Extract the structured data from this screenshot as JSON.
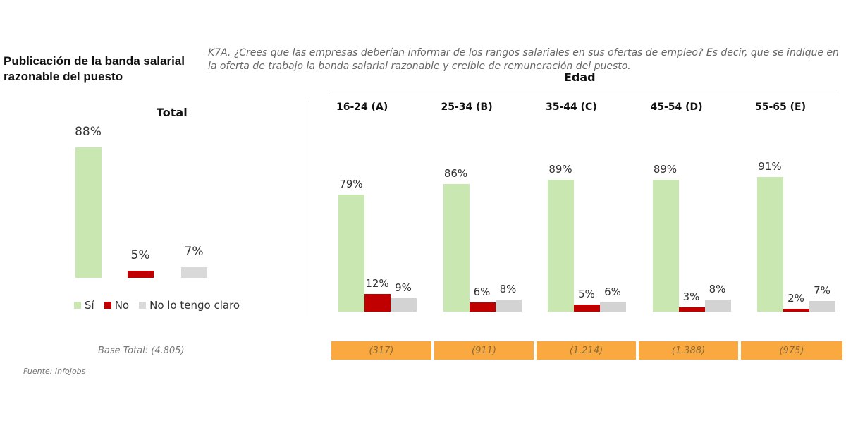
{
  "title": "Publicación de la banda salarial razonable del puesto",
  "question": "K7A. ¿Crees que las empresas deberían informar de los rangos salariales en sus ofertas de empleo? Es decir, que se indique en la oferta de trabajo la banda salarial razonable y creíble de remuneración del puesto.",
  "source": "Fuente: InfoJobs",
  "colors": {
    "si": "#C9E7B0",
    "no": "#C00000",
    "no_claro": "#D3D3D3",
    "base_box": "#F9A93F"
  },
  "chart_data": [
    {
      "type": "bar",
      "title": "Total",
      "categories": [
        "Sí",
        "No",
        "No lo tengo claro"
      ],
      "values": [
        88,
        5,
        7
      ],
      "labels": [
        "88%",
        "5%",
        "7%"
      ],
      "legend": [
        "Sí",
        "No",
        "No lo tengo claro"
      ],
      "legend_placement": "bottom",
      "base": "Base Total: (4.805)"
    },
    {
      "type": "bar",
      "title": "Edad",
      "categories": [
        "16-24 (A)",
        "25-34 (B)",
        "35-44 (C)",
        "45-54 (D)",
        "55-65 (E)"
      ],
      "series": [
        {
          "name": "Sí",
          "values": [
            79,
            86,
            89,
            89,
            91
          ],
          "labels": [
            "79%",
            "86%",
            "89%",
            "89%",
            "91%"
          ]
        },
        {
          "name": "No",
          "values": [
            12,
            6,
            5,
            3,
            2
          ],
          "labels": [
            "12%",
            "6%",
            "5%",
            "3%",
            "2%"
          ]
        },
        {
          "name": "No lo tengo claro",
          "values": [
            9,
            8,
            6,
            8,
            7
          ],
          "labels": [
            "9%",
            "8%",
            "6%",
            "8%",
            "7%"
          ]
        }
      ],
      "bases": [
        "(317)",
        "(911)",
        "(1.214)",
        "(1.388)",
        "(975)"
      ]
    }
  ]
}
